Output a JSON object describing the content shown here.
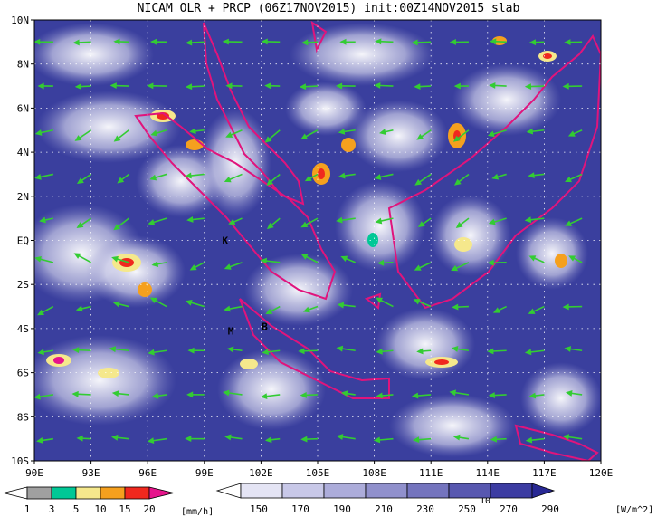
{
  "title": "NICAM OLR + PRCP (06Z17NOV2015) init:00Z14NOV2015 slab",
  "map": {
    "lat_range": [
      -10,
      10
    ],
    "lon_range": [
      90,
      120
    ],
    "lat_ticks": [
      "10N",
      "8N",
      "6N",
      "4N",
      "2N",
      "EQ",
      "2S",
      "4S",
      "6S",
      "8S",
      "10S"
    ],
    "lat_values": [
      10,
      8,
      6,
      4,
      2,
      0,
      -2,
      -4,
      -6,
      -8,
      -10
    ],
    "lon_ticks": [
      "90E",
      "93E",
      "96E",
      "99E",
      "102E",
      "105E",
      "108E",
      "111E",
      "114E",
      "117E",
      "120E"
    ],
    "lon_values": [
      90,
      93,
      96,
      99,
      102,
      105,
      108,
      111,
      114,
      117,
      120
    ],
    "grid": "dotted",
    "coastline_color": "#e0147c",
    "vector_color": "#33cc33",
    "background_color": "#3a3f9e",
    "place_labels": [
      {
        "text": "K",
        "lon": 100.1,
        "lat": 0.0
      },
      {
        "text": "M",
        "lon": 100.4,
        "lat": -4.1
      },
      {
        "text": "B",
        "lon": 102.2,
        "lat": -3.9
      }
    ],
    "reference_vector": {
      "label": "10",
      "lat_pos": -10.8
    }
  },
  "precip_legend": {
    "levels": [
      "1",
      "3",
      "5",
      "10",
      "15",
      "20"
    ],
    "colors": [
      "#a0a0a0",
      "#00c896",
      "#f5e88c",
      "#f5a01e",
      "#f0281e",
      "#e6148c"
    ],
    "unit": "[mm/h]"
  },
  "olr_legend": {
    "levels": [
      "150",
      "170",
      "190",
      "210",
      "230",
      "250",
      "270",
      "290"
    ],
    "colors": [
      "#ffffff",
      "#e4e4f4",
      "#c8c8e8",
      "#acacda",
      "#9090cc",
      "#7474be",
      "#5858b0",
      "#3c3ca2",
      "#282894"
    ],
    "unit": "[W/m^2]"
  }
}
